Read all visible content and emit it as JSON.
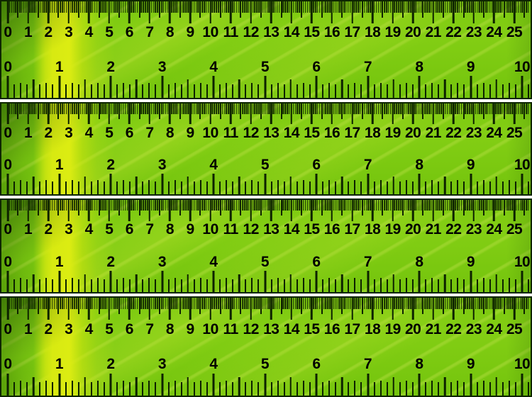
{
  "page": {
    "background_color": "#ffffff",
    "description": "Sheet of four identical leaf-photo textured ruler strips"
  },
  "ruler_count": 4,
  "ruler": {
    "base_green": "#7cc90f",
    "highlight_band_color": "#d9eb12",
    "vein_color": "#a8dd3e",
    "tick_color": "#0d2200",
    "number_color": "#000000",
    "border_color": "#0e2600",
    "top_scale": {
      "unit": "cm",
      "minor_divisions_per_unit": 10,
      "labels": [
        "0",
        "1",
        "2",
        "3",
        "4",
        "5",
        "6",
        "7",
        "8",
        "9",
        "10",
        "11",
        "12",
        "13",
        "14",
        "15",
        "16",
        "17",
        "18",
        "19",
        "20",
        "21",
        "22",
        "23",
        "24",
        "25"
      ]
    },
    "bottom_scale": {
      "unit": "inch",
      "minor_divisions_per_unit": 8,
      "labels": [
        "0",
        "1",
        "2",
        "3",
        "4",
        "5",
        "6",
        "7",
        "8",
        "9",
        "10"
      ]
    }
  }
}
